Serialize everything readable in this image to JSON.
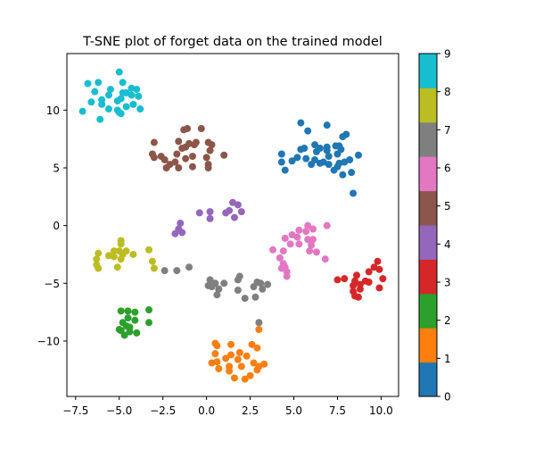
{
  "chart_data": {
    "type": "scatter",
    "title": "T-SNE plot of forget data on the trained model",
    "xlabel": "",
    "ylabel": "",
    "xlim": [
      -8.0,
      11.0
    ],
    "ylim": [
      -14.8,
      14.9
    ],
    "xticks": [
      -7.5,
      -5.0,
      -2.5,
      0.0,
      2.5,
      5.0,
      7.5,
      10.0
    ],
    "xtick_labels": [
      "−7.5",
      "−5.0",
      "−2.5",
      "0.0",
      "2.5",
      "5.0",
      "7.5",
      "10.0"
    ],
    "yticks": [
      -10,
      -5,
      0,
      5,
      10
    ],
    "ytick_labels": [
      "−10",
      "−5",
      "0",
      "5",
      "10"
    ],
    "grid": false,
    "legend": "none",
    "colormap": "tab10",
    "colorbar": {
      "range": [
        0,
        9
      ],
      "ticks": [
        0,
        1,
        2,
        3,
        4,
        5,
        6,
        7,
        8,
        9
      ],
      "tick_labels": [
        "0",
        "1",
        "2",
        "3",
        "4",
        "5",
        "6",
        "7",
        "8",
        "9"
      ],
      "colors": [
        "#1f77b4",
        "#ff7f0e",
        "#2ca02c",
        "#d62728",
        "#9467bd",
        "#8c564b",
        "#e377c2",
        "#7f7f7f",
        "#bcbd22",
        "#17becf"
      ]
    },
    "series": [
      {
        "class": 0,
        "color": "#1f77b4",
        "points": [
          [
            5.4,
            8.9
          ],
          [
            5.8,
            8.2
          ],
          [
            6.9,
            8.7
          ],
          [
            7.8,
            7.7
          ],
          [
            8.0,
            7.9
          ],
          [
            4.3,
            6.2
          ],
          [
            5.4,
            6.6
          ],
          [
            5.6,
            6.7
          ],
          [
            6.2,
            7.0
          ],
          [
            6.3,
            6.4
          ],
          [
            6.5,
            6.7
          ],
          [
            6.9,
            6.8
          ],
          [
            6.9,
            6.5
          ],
          [
            7.4,
            6.9
          ],
          [
            7.5,
            6.2
          ],
          [
            7.6,
            6.9
          ],
          [
            7.7,
            6.6
          ],
          [
            7.0,
            6.0
          ],
          [
            8.7,
            6.1
          ],
          [
            4.3,
            5.5
          ],
          [
            4.9,
            5.6
          ],
          [
            5.2,
            5.9
          ],
          [
            5.7,
            5.8
          ],
          [
            6.2,
            5.7
          ],
          [
            6.5,
            5.4
          ],
          [
            6.7,
            5.5
          ],
          [
            7.0,
            5.3
          ],
          [
            7.5,
            5.1
          ],
          [
            7.6,
            5.4
          ],
          [
            7.9,
            5.5
          ],
          [
            8.2,
            5.7
          ],
          [
            4.5,
            4.8
          ],
          [
            6.0,
            5.3
          ],
          [
            7.3,
            4.8
          ],
          [
            7.8,
            4.4
          ],
          [
            8.3,
            4.6
          ],
          [
            8.4,
            2.8
          ]
        ]
      },
      {
        "class": 1,
        "color": "#ff7f0e",
        "points": [
          [
            3.0,
            -9.0
          ],
          [
            0.5,
            -10.2
          ],
          [
            0.6,
            -10.4
          ],
          [
            1.4,
            -10.3
          ],
          [
            2.6,
            -10.3
          ],
          [
            2.9,
            -10.6
          ],
          [
            0.5,
            -11.1
          ],
          [
            1.4,
            -11.2
          ],
          [
            1.9,
            -11.0
          ],
          [
            2.3,
            -11.3
          ],
          [
            0.3,
            -11.9
          ],
          [
            0.6,
            -11.8
          ],
          [
            1.1,
            -11.5
          ],
          [
            1.3,
            -12.2
          ],
          [
            1.8,
            -11.6
          ],
          [
            2.0,
            -12.2
          ],
          [
            2.7,
            -11.9
          ],
          [
            3.0,
            -12.2
          ],
          [
            3.3,
            -12.0
          ],
          [
            0.7,
            -12.4
          ],
          [
            1.3,
            -12.6
          ],
          [
            2.9,
            -12.5
          ],
          [
            1.6,
            -13.2
          ],
          [
            2.2,
            -13.3
          ],
          [
            2.5,
            -13.0
          ]
        ]
      },
      {
        "class": 2,
        "color": "#2ca02c",
        "points": [
          [
            -4.9,
            -7.4
          ],
          [
            -4.5,
            -7.4
          ],
          [
            -4.1,
            -7.5
          ],
          [
            -3.3,
            -7.3
          ],
          [
            -4.5,
            -8.0
          ],
          [
            -4.1,
            -8.2
          ],
          [
            -3.3,
            -8.4
          ],
          [
            -4.8,
            -8.4
          ],
          [
            -4.6,
            -8.7
          ],
          [
            -4.4,
            -8.8
          ],
          [
            -5.0,
            -9.0
          ],
          [
            -4.4,
            -9.2
          ],
          [
            -4.9,
            -9.1
          ],
          [
            -4.0,
            -9.3
          ],
          [
            -4.7,
            -9.5
          ]
        ]
      },
      {
        "class": 3,
        "color": "#d62728",
        "points": [
          [
            9.8,
            -3.1
          ],
          [
            9.6,
            -3.6
          ],
          [
            9.9,
            -3.8
          ],
          [
            9.3,
            -4.0
          ],
          [
            8.6,
            -4.3
          ],
          [
            10.1,
            -4.6
          ],
          [
            7.5,
            -4.7
          ],
          [
            7.9,
            -4.6
          ],
          [
            8.5,
            -4.8
          ],
          [
            9.1,
            -4.8
          ],
          [
            9.3,
            -4.9
          ],
          [
            8.8,
            -5.1
          ],
          [
            8.4,
            -5.2
          ],
          [
            9.9,
            -5.4
          ],
          [
            8.8,
            -5.5
          ],
          [
            8.4,
            -5.7
          ],
          [
            8.5,
            -6.1
          ],
          [
            8.7,
            -6.2
          ]
        ]
      },
      {
        "class": 4,
        "color": "#9467bd",
        "points": [
          [
            1.5,
            2.0
          ],
          [
            1.8,
            1.8
          ],
          [
            1.3,
            1.3
          ],
          [
            2.0,
            1.2
          ],
          [
            -0.4,
            1.1
          ],
          [
            1.1,
            1.1
          ],
          [
            1.6,
            0.7
          ],
          [
            0.2,
            1.2
          ],
          [
            0.2,
            0.6
          ],
          [
            -1.5,
            0.2
          ],
          [
            -1.6,
            -0.3
          ],
          [
            -1.4,
            -0.6
          ],
          [
            -1.8,
            -0.7
          ]
        ]
      },
      {
        "class": 5,
        "color": "#8c564b",
        "points": [
          [
            -1.3,
            8.3
          ],
          [
            -1.1,
            8.4
          ],
          [
            -0.3,
            8.4
          ],
          [
            -3.0,
            7.2
          ],
          [
            -1.6,
            7.3
          ],
          [
            -1.0,
            7.1
          ],
          [
            -0.6,
            7.2
          ],
          [
            -0.7,
            7.0
          ],
          [
            0.1,
            7.2
          ],
          [
            0.3,
            7.0
          ],
          [
            -1.4,
            6.7
          ],
          [
            -1.2,
            6.8
          ],
          [
            0.2,
            6.5
          ],
          [
            -3.1,
            6.2
          ],
          [
            -1.7,
            6.2
          ],
          [
            -2.6,
            6.0
          ],
          [
            -3.0,
            5.9
          ],
          [
            -2.4,
            5.7
          ],
          [
            -1.8,
            5.5
          ],
          [
            -0.8,
            6.0
          ],
          [
            -1.2,
            5.8
          ],
          [
            1.0,
            6.1
          ],
          [
            0.0,
            5.9
          ],
          [
            -2.1,
            5.3
          ],
          [
            -2.3,
            5.0
          ],
          [
            -1.6,
            5.0
          ],
          [
            -0.8,
            5.1
          ],
          [
            0.1,
            5.3
          ],
          [
            0.1,
            5.0
          ]
        ]
      },
      {
        "class": 6,
        "color": "#e377c2",
        "points": [
          [
            5.8,
            0.0
          ],
          [
            6.1,
            -0.3
          ],
          [
            6.9,
            0.0
          ],
          [
            5.3,
            -0.4
          ],
          [
            5.7,
            -0.5
          ],
          [
            4.5,
            -1.1
          ],
          [
            4.9,
            -0.8
          ],
          [
            5.2,
            -1.0
          ],
          [
            5.8,
            -1.2
          ],
          [
            6.1,
            -1.2
          ],
          [
            6.0,
            -1.7
          ],
          [
            5.3,
            -1.6
          ],
          [
            4.8,
            -1.6
          ],
          [
            3.8,
            -2.1
          ],
          [
            4.4,
            -2.2
          ],
          [
            5.9,
            -2.2
          ],
          [
            6.3,
            -2.3
          ],
          [
            4.2,
            -2.8
          ],
          [
            4.4,
            -3.3
          ],
          [
            4.3,
            -3.7
          ],
          [
            4.5,
            -3.6
          ],
          [
            4.6,
            -4.0
          ],
          [
            4.6,
            -4.4
          ],
          [
            6.8,
            -2.9
          ]
        ]
      },
      {
        "class": 7,
        "color": "#7f7f7f",
        "points": [
          [
            -2.4,
            -3.9
          ],
          [
            -1.7,
            -3.9
          ],
          [
            -1.0,
            -3.6
          ],
          [
            0.2,
            -4.7
          ],
          [
            0.1,
            -5.2
          ],
          [
            0.5,
            -5.0
          ],
          [
            0.3,
            -5.3
          ],
          [
            0.7,
            -5.5
          ],
          [
            1.0,
            -5.0
          ],
          [
            0.6,
            -6.0
          ],
          [
            1.8,
            -4.7
          ],
          [
            1.9,
            -4.4
          ],
          [
            1.8,
            -5.6
          ],
          [
            2.2,
            -6.3
          ],
          [
            2.7,
            -5.3
          ],
          [
            2.9,
            -4.9
          ],
          [
            3.1,
            -5.0
          ],
          [
            3.2,
            -5.5
          ],
          [
            3.5,
            -5.1
          ],
          [
            2.8,
            -6.2
          ],
          [
            3.0,
            -8.4
          ]
        ]
      },
      {
        "class": 8,
        "color": "#bcbd22",
        "points": [
          [
            -4.9,
            -1.3
          ],
          [
            -4.9,
            -1.6
          ],
          [
            -6.2,
            -2.4
          ],
          [
            -5.3,
            -2.2
          ],
          [
            -5.0,
            -2.2
          ],
          [
            -4.6,
            -2.2
          ],
          [
            -4.8,
            -2.5
          ],
          [
            -4.2,
            -2.5
          ],
          [
            -5.6,
            -2.6
          ],
          [
            -5.3,
            -2.7
          ],
          [
            -6.3,
            -2.9
          ],
          [
            -4.9,
            -2.9
          ],
          [
            -3.3,
            -2.1
          ],
          [
            -3.1,
            -3.1
          ],
          [
            -6.3,
            -3.4
          ],
          [
            -6.2,
            -3.7
          ],
          [
            -5.1,
            -3.6
          ],
          [
            -3.0,
            -3.7
          ]
        ]
      },
      {
        "class": 9,
        "color": "#17becf",
        "points": [
          [
            -5.0,
            13.3
          ],
          [
            -6.8,
            12.3
          ],
          [
            -6.2,
            12.4
          ],
          [
            -5.5,
            11.8
          ],
          [
            -4.3,
            11.9
          ],
          [
            -4.6,
            11.5
          ],
          [
            -4.3,
            11.3
          ],
          [
            -5.6,
            11.3
          ],
          [
            -6.4,
            11.6
          ],
          [
            -4.8,
            11.5
          ],
          [
            -4.8,
            12.4
          ],
          [
            -4.0,
            11.8
          ],
          [
            -3.9,
            11.2
          ],
          [
            -4.9,
            11.0
          ],
          [
            -5.1,
            10.8
          ],
          [
            -6.0,
            10.9
          ],
          [
            -6.6,
            10.7
          ],
          [
            -6.0,
            10.5
          ],
          [
            -5.6,
            10.1
          ],
          [
            -4.6,
            10.3
          ],
          [
            -4.2,
            10.5
          ],
          [
            -3.8,
            10.1
          ],
          [
            -5.1,
            10.0
          ],
          [
            -5.0,
            9.8
          ],
          [
            -4.9,
            9.7
          ],
          [
            -7.1,
            9.9
          ],
          [
            -6.1,
            9.2
          ]
        ]
      }
    ]
  }
}
